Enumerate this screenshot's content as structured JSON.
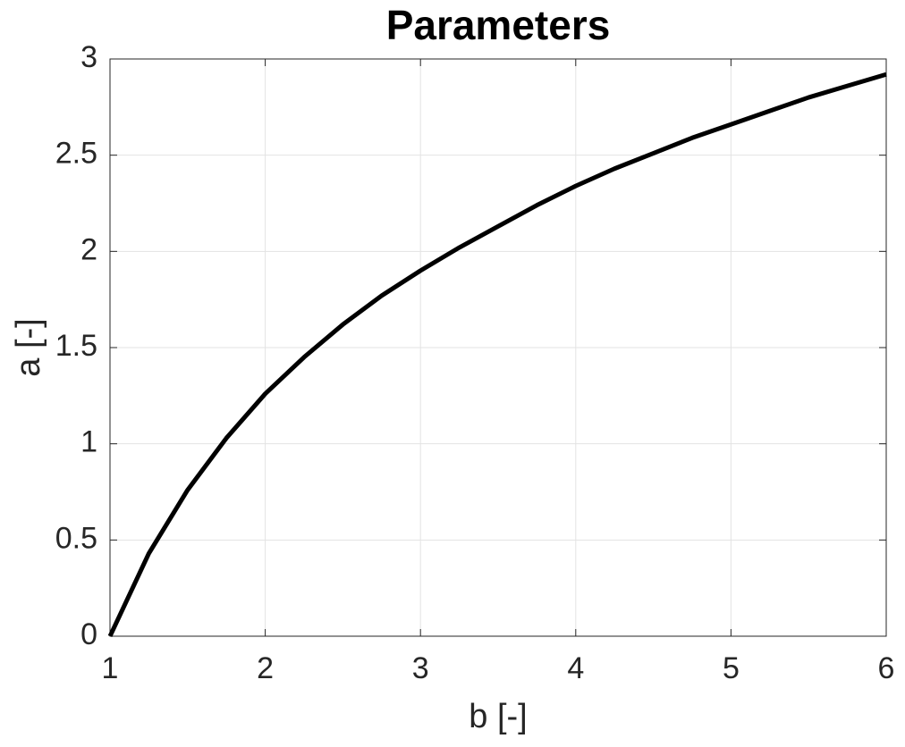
{
  "chart_data": {
    "type": "line",
    "title": "Parameters",
    "xlabel": "b [-]",
    "ylabel": "a [-]",
    "x": [
      1,
      1.25,
      1.5,
      1.75,
      2,
      2.25,
      2.5,
      2.75,
      3,
      3.25,
      3.5,
      3.75,
      4,
      4.25,
      4.5,
      4.75,
      5,
      5.25,
      5.5,
      5.75,
      6
    ],
    "series": [
      {
        "name": "a",
        "color": "#000000",
        "values": [
          0,
          0.43,
          0.76,
          1.03,
          1.26,
          1.45,
          1.62,
          1.77,
          1.9,
          2.02,
          2.13,
          2.24,
          2.34,
          2.43,
          2.51,
          2.59,
          2.66,
          2.73,
          2.8,
          2.86,
          2.92
        ]
      }
    ],
    "xlim": [
      1,
      6
    ],
    "xticks": [
      1,
      2,
      3,
      4,
      5,
      6
    ],
    "ylim": [
      0,
      3
    ],
    "yticks": [
      0,
      0.5,
      1,
      1.5,
      2,
      2.5,
      3
    ],
    "grid": true
  }
}
